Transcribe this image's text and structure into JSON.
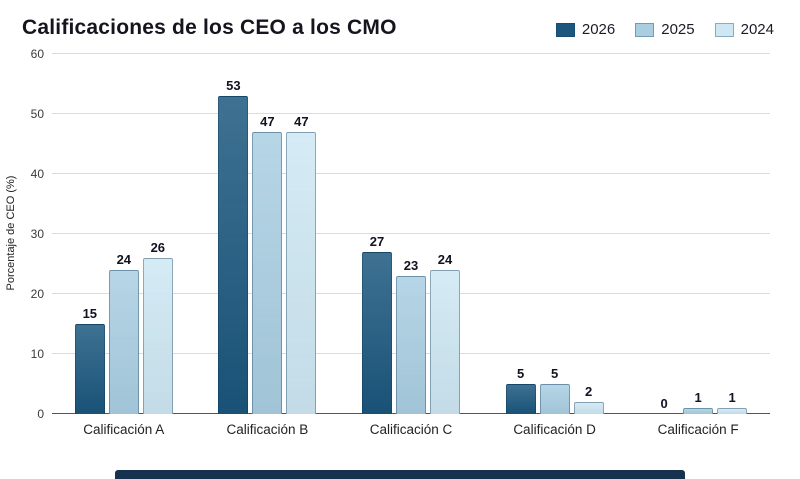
{
  "title": "Calificaciones de los CEO a los CMO",
  "chart_data": {
    "type": "bar",
    "title": "Calificaciones de los CEO a los CMO",
    "categories": [
      "Calificación A",
      "Calificación B",
      "Calificación C",
      "Calificación D",
      "Calificación F"
    ],
    "series": [
      {
        "name": "2026",
        "color": "#1a567d",
        "values": [
          15,
          53,
          27,
          5,
          0
        ]
      },
      {
        "name": "2025",
        "color": "#a9cee2",
        "values": [
          24,
          47,
          23,
          5,
          1
        ]
      },
      {
        "name": "2024",
        "color": "#cde7f3",
        "values": [
          26,
          47,
          24,
          2,
          1
        ]
      }
    ],
    "xlabel": "",
    "ylabel": "Porcentaje de CEO (%)",
    "ylim": [
      0,
      60
    ],
    "yticks": [
      0,
      10,
      20,
      30,
      40,
      50,
      60
    ],
    "grid": true,
    "legend_position": "top-right"
  }
}
